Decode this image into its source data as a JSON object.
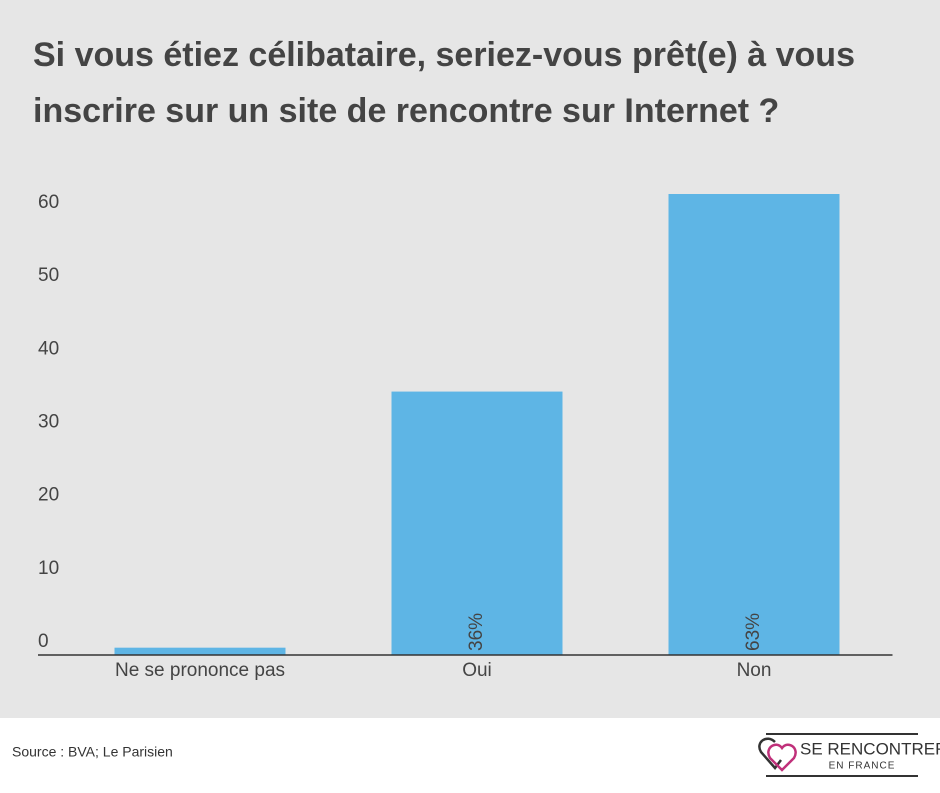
{
  "chart_data": {
    "type": "bar",
    "title": [
      "Si vous étiez célibataire, seriez-vous prêt(e) à vous",
      "inscrire sur un site de rencontre sur Internet ?"
    ],
    "categories": [
      "Ne se prononce pas",
      "Oui",
      "Non"
    ],
    "values": [
      1,
      36,
      63
    ],
    "value_labels": [
      null,
      "36%",
      "63%"
    ],
    "color": "#5eb5e5",
    "ylim": [
      0,
      63
    ],
    "yticks": [
      0,
      10,
      20,
      30,
      40,
      50,
      60
    ],
    "grid": false,
    "source": "Source : BVA; Le Parisien",
    "logo": [
      "SE RENCONTRER",
      "EN FRANCE"
    ]
  }
}
